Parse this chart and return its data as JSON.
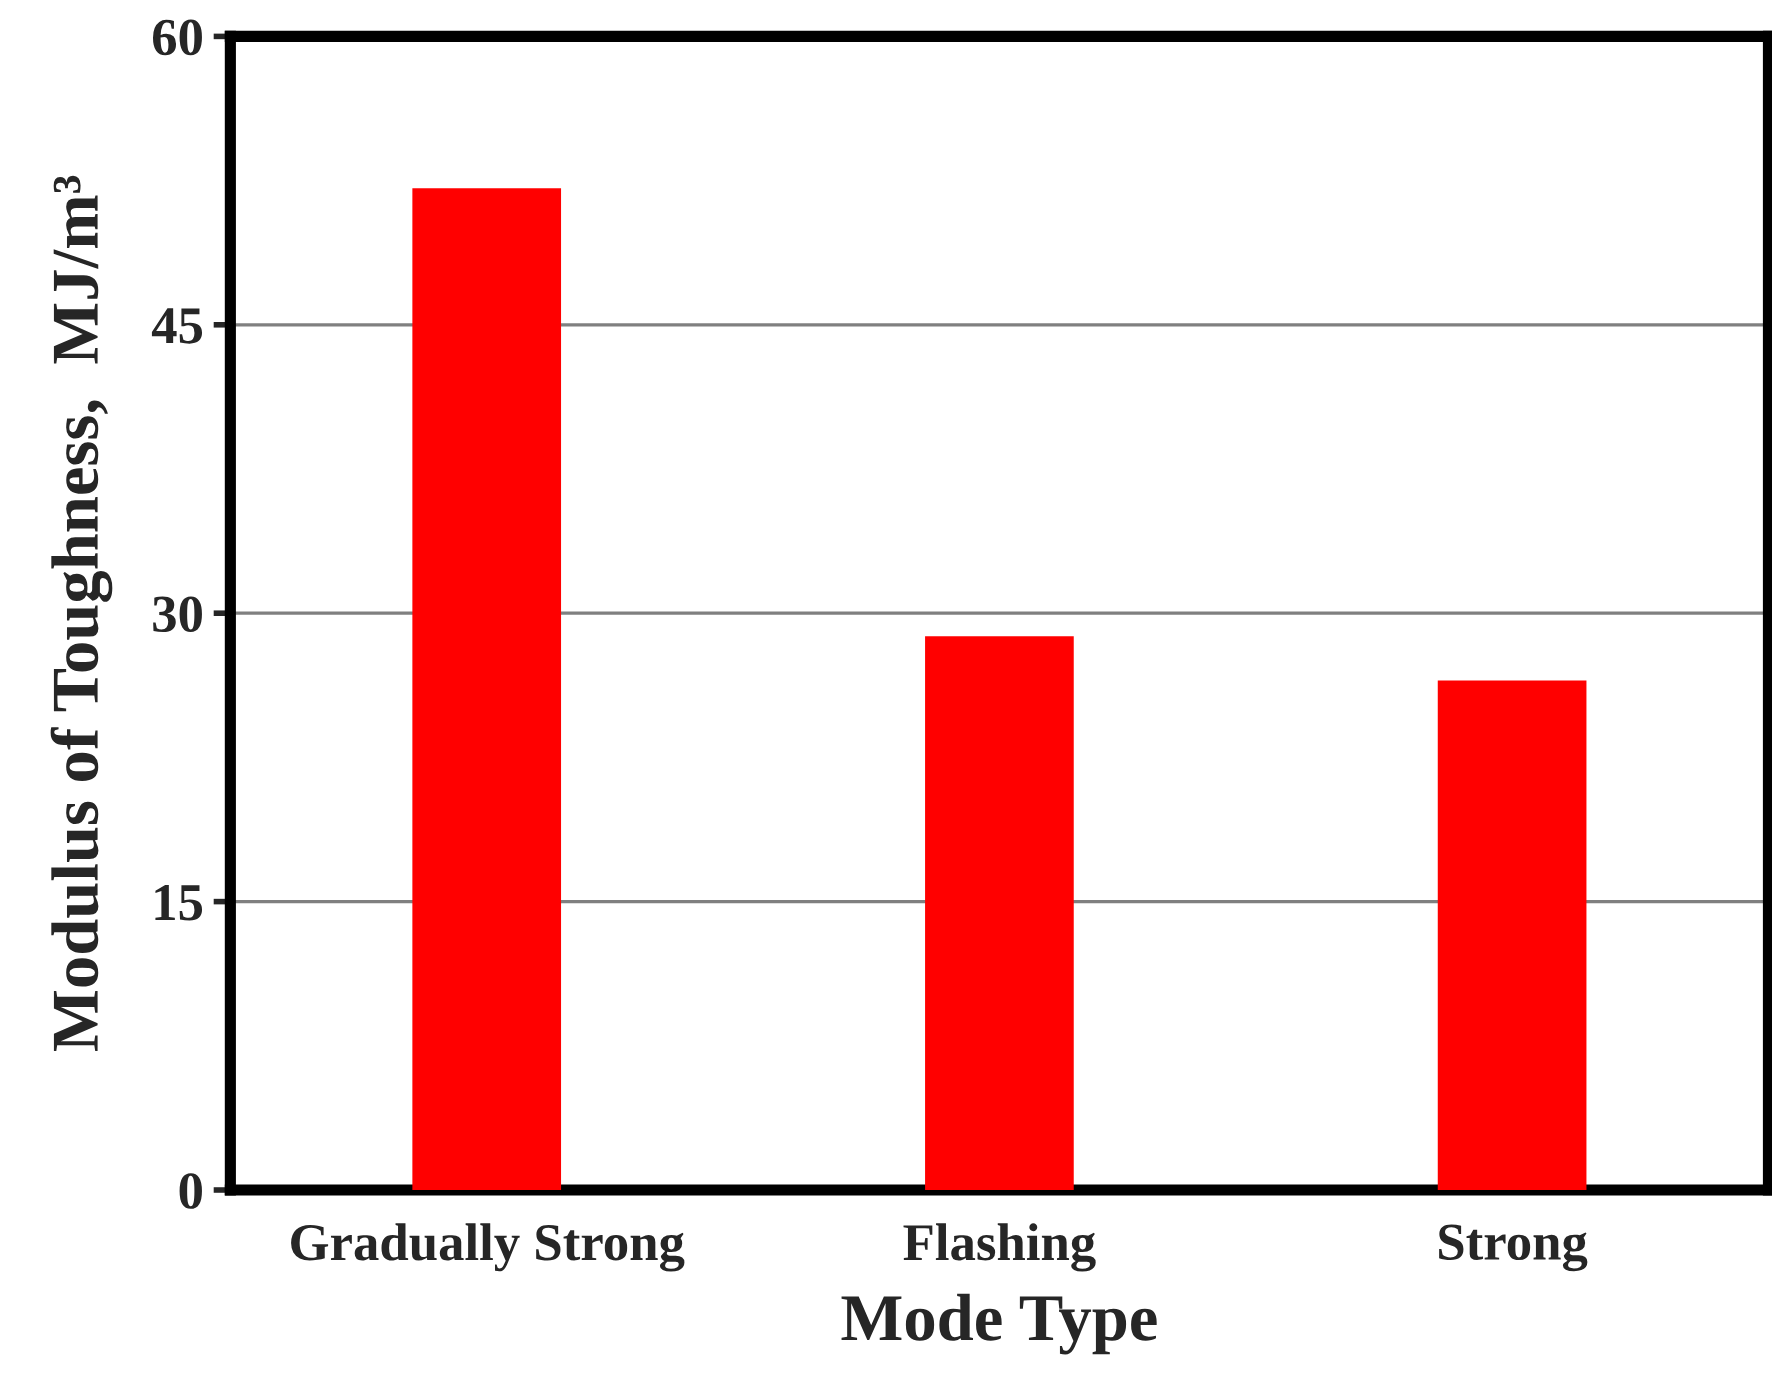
{
  "chart_data": {
    "type": "bar",
    "xlabel": "Mode Type",
    "ylabel": "Modulus of Toughness,  MJ/m³",
    "categories": [
      "Gradually Strong",
      "Flashing",
      "Strong"
    ],
    "values": [
      52.1,
      28.8,
      26.5
    ],
    "color": "#ff0000",
    "ylim": [
      0,
      60
    ],
    "yticks": [
      0,
      15,
      30,
      45,
      60
    ],
    "grid": "y",
    "legend": false
  }
}
